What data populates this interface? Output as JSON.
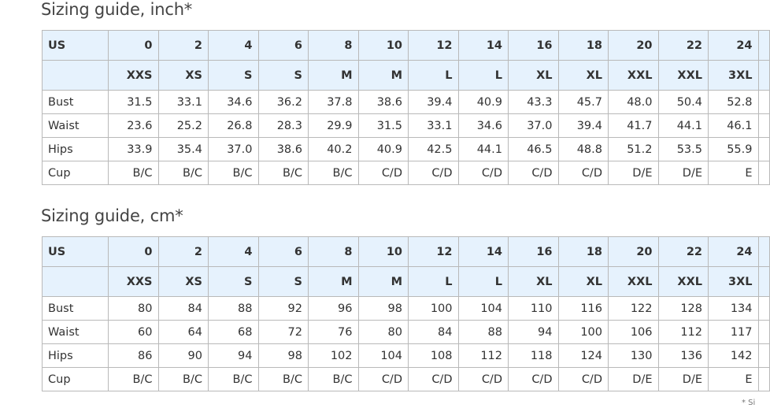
{
  "tables": [
    {
      "title": "Sizing guide, inch*",
      "header_label": "US",
      "us_sizes": [
        "0",
        "2",
        "4",
        "6",
        "8",
        "10",
        "12",
        "14",
        "16",
        "18",
        "20",
        "22",
        "24",
        ""
      ],
      "letter_sizes": [
        "XXS",
        "XS",
        "S",
        "S",
        "M",
        "M",
        "L",
        "L",
        "XL",
        "XL",
        "XXL",
        "XXL",
        "3XL",
        ""
      ],
      "rows": [
        {
          "label": "Bust",
          "values": [
            "31.5",
            "33.1",
            "34.6",
            "36.2",
            "37.8",
            "38.6",
            "39.4",
            "40.9",
            "43.3",
            "45.7",
            "48.0",
            "50.4",
            "52.8",
            ""
          ]
        },
        {
          "label": "Waist",
          "values": [
            "23.6",
            "25.2",
            "26.8",
            "28.3",
            "29.9",
            "31.5",
            "33.1",
            "34.6",
            "37.0",
            "39.4",
            "41.7",
            "44.1",
            "46.1",
            ""
          ]
        },
        {
          "label": "Hips",
          "values": [
            "33.9",
            "35.4",
            "37.0",
            "38.6",
            "40.2",
            "40.9",
            "42.5",
            "44.1",
            "46.5",
            "48.8",
            "51.2",
            "53.5",
            "55.9",
            ""
          ]
        },
        {
          "label": "Cup",
          "values": [
            "B/C",
            "B/C",
            "B/C",
            "B/C",
            "B/C",
            "C/D",
            "C/D",
            "C/D",
            "C/D",
            "C/D",
            "D/E",
            "D/E",
            "E",
            ""
          ]
        }
      ]
    },
    {
      "title": "Sizing guide, cm*",
      "header_label": "US",
      "us_sizes": [
        "0",
        "2",
        "4",
        "6",
        "8",
        "10",
        "12",
        "14",
        "16",
        "18",
        "20",
        "22",
        "24",
        ""
      ],
      "letter_sizes": [
        "XXS",
        "XS",
        "S",
        "S",
        "M",
        "M",
        "L",
        "L",
        "XL",
        "XL",
        "XXL",
        "XXL",
        "3XL",
        ""
      ],
      "rows": [
        {
          "label": "Bust",
          "values": [
            "80",
            "84",
            "88",
            "92",
            "96",
            "98",
            "100",
            "104",
            "110",
            "116",
            "122",
            "128",
            "134",
            ""
          ]
        },
        {
          "label": "Waist",
          "values": [
            "60",
            "64",
            "68",
            "72",
            "76",
            "80",
            "84",
            "88",
            "94",
            "100",
            "106",
            "112",
            "117",
            ""
          ]
        },
        {
          "label": "Hips",
          "values": [
            "86",
            "90",
            "94",
            "98",
            "102",
            "104",
            "108",
            "112",
            "118",
            "124",
            "130",
            "136",
            "142",
            ""
          ]
        },
        {
          "label": "Cup",
          "values": [
            "B/C",
            "B/C",
            "B/C",
            "B/C",
            "B/C",
            "C/D",
            "C/D",
            "C/D",
            "C/D",
            "C/D",
            "D/E",
            "D/E",
            "E",
            ""
          ]
        }
      ]
    }
  ],
  "footnote": "* Si"
}
